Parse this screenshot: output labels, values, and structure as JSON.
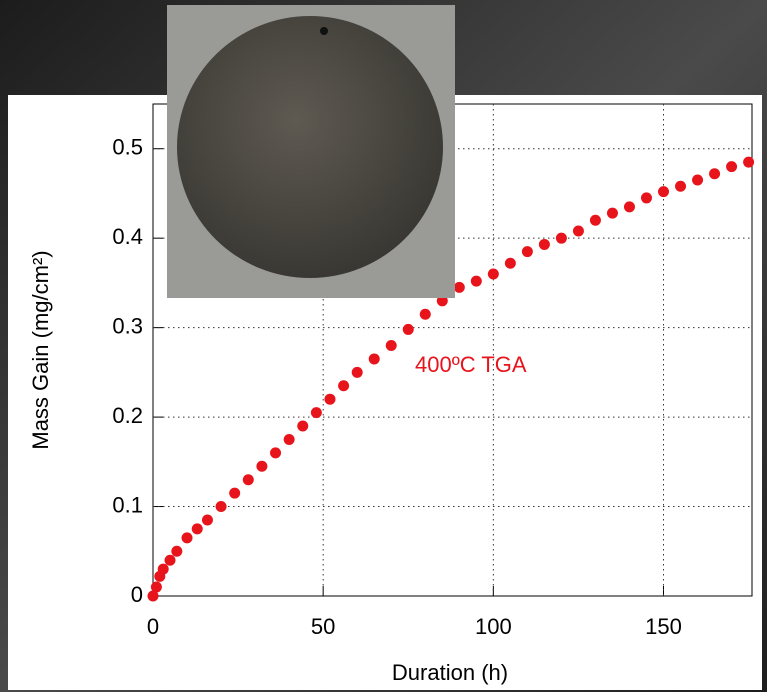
{
  "chart_data": {
    "type": "scatter",
    "x_label": "Duration (h)",
    "y_label": "Mass Gain (mg/cm²)",
    "annotation": "400ºC TGA",
    "color": "#e8141b",
    "xlim": [
      0,
      176
    ],
    "ylim": [
      0,
      0.55
    ],
    "xticks": [
      0,
      50,
      100,
      150
    ],
    "yticks": [
      0,
      0.1,
      0.2,
      0.3,
      0.4,
      0.5
    ],
    "grid": true,
    "x": [
      0,
      1,
      2,
      3,
      5,
      7,
      10,
      13,
      16,
      20,
      24,
      28,
      32,
      36,
      40,
      44,
      48,
      52,
      56,
      60,
      65,
      70,
      75,
      80,
      85,
      90,
      95,
      100,
      105,
      110,
      115,
      120,
      125,
      130,
      135,
      140,
      145,
      150,
      155,
      160,
      165,
      170,
      175
    ],
    "values": [
      0,
      0.01,
      0.022,
      0.03,
      0.04,
      0.05,
      0.065,
      0.075,
      0.085,
      0.1,
      0.115,
      0.13,
      0.145,
      0.16,
      0.175,
      0.19,
      0.205,
      0.22,
      0.235,
      0.25,
      0.265,
      0.28,
      0.298,
      0.315,
      0.33,
      0.345,
      0.352,
      0.36,
      0.372,
      0.385,
      0.393,
      0.4,
      0.408,
      0.42,
      0.428,
      0.435,
      0.445,
      0.452,
      0.458,
      0.465,
      0.472,
      0.48,
      0.485
    ]
  }
}
